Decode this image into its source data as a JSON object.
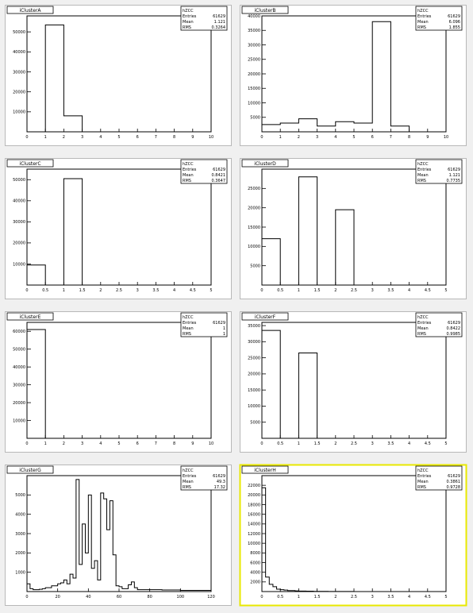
{
  "selected_pad": 7,
  "colors": {
    "pad_border": "#b8b8b8",
    "selected_border": "#e8e800",
    "background": "#f0f0f0"
  },
  "chart_data": [
    {
      "type": "bar",
      "title": "iClusterA",
      "stats": [
        [
          "hZCC",
          ""
        ],
        [
          "Entries",
          "61629"
        ],
        [
          "Mean",
          "1.121"
        ],
        [
          "RMS",
          "0.3264"
        ]
      ],
      "xlim": [
        0,
        10
      ],
      "ylim": [
        0,
        58000
      ],
      "xticks": [
        0,
        1,
        2,
        3,
        4,
        5,
        6,
        7,
        8,
        9,
        10
      ],
      "xticklabels": [
        "0",
        "1",
        "2",
        "3",
        "4",
        "5",
        "6",
        "7",
        "8",
        "9",
        "10"
      ],
      "yticks": [
        10000,
        20000,
        30000,
        40000,
        50000
      ],
      "yticklabels": [
        "10000",
        "20000",
        "30000",
        "40000",
        "50000"
      ],
      "bin_edges": [
        0,
        1,
        2,
        3,
        4,
        5,
        6,
        7,
        8,
        9,
        10
      ],
      "values": [
        0,
        53500,
        8000,
        0,
        0,
        0,
        0,
        0,
        0,
        0
      ]
    },
    {
      "type": "bar",
      "title": "iClusterB",
      "stats": [
        [
          "hZCC",
          ""
        ],
        [
          "Entries",
          "61629"
        ],
        [
          "Mean",
          "6.096"
        ],
        [
          "RMS",
          "1.855"
        ]
      ],
      "xlim": [
        0,
        10
      ],
      "ylim": [
        0,
        40000
      ],
      "xticks": [
        0,
        1,
        2,
        3,
        4,
        5,
        6,
        7,
        8,
        9,
        10
      ],
      "xticklabels": [
        "0",
        "1",
        "2",
        "3",
        "4",
        "5",
        "6",
        "7",
        "8",
        "9",
        "10"
      ],
      "yticks": [
        5000,
        10000,
        15000,
        20000,
        25000,
        30000,
        35000,
        40000
      ],
      "yticklabels": [
        "5000",
        "10000",
        "15000",
        "20000",
        "25000",
        "30000",
        "35000",
        "40000"
      ],
      "bin_edges": [
        0,
        1,
        2,
        3,
        4,
        5,
        6,
        7,
        8,
        9,
        10
      ],
      "values": [
        2500,
        3000,
        4500,
        2000,
        3500,
        3000,
        38000,
        2000,
        0,
        0
      ]
    },
    {
      "type": "bar",
      "title": "iClusterC",
      "stats": [
        [
          "hZCC",
          ""
        ],
        [
          "Entries",
          "61629"
        ],
        [
          "Mean",
          "0.8421"
        ],
        [
          "RMS",
          "0.3647"
        ]
      ],
      "xlim": [
        0,
        5
      ],
      "ylim": [
        0,
        55000
      ],
      "xticks": [
        0,
        0.5,
        1,
        1.5,
        2,
        2.5,
        3,
        3.5,
        4,
        4.5,
        5
      ],
      "xticklabels": [
        "0",
        "0.5",
        "1",
        "1.5",
        "2",
        "2.5",
        "3",
        "3.5",
        "4",
        "4.5",
        "5"
      ],
      "yticks": [
        10000,
        20000,
        30000,
        40000,
        50000
      ],
      "yticklabels": [
        "10000",
        "20000",
        "30000",
        "40000",
        "50000"
      ],
      "bin_edges": [
        0,
        0.5,
        1,
        1.5,
        2,
        2.5,
        3,
        3.5,
        4,
        4.5,
        5
      ],
      "values": [
        9500,
        0,
        50500,
        0,
        0,
        0,
        0,
        0,
        0,
        0
      ]
    },
    {
      "type": "bar",
      "title": "iClusterD",
      "stats": [
        [
          "hZCC",
          ""
        ],
        [
          "Entries",
          "61629"
        ],
        [
          "Mean",
          "1.121"
        ],
        [
          "RMS",
          "0.7735"
        ]
      ],
      "xlim": [
        0,
        5
      ],
      "ylim": [
        0,
        30000
      ],
      "xticks": [
        0,
        0.5,
        1,
        1.5,
        2,
        2.5,
        3,
        3.5,
        4,
        4.5,
        5
      ],
      "xticklabels": [
        "0",
        "0.5",
        "1",
        "1.5",
        "2",
        "2.5",
        "3",
        "3.5",
        "4",
        "4.5",
        "5"
      ],
      "yticks": [
        5000,
        10000,
        15000,
        20000,
        25000
      ],
      "yticklabels": [
        "5000",
        "10000",
        "15000",
        "20000",
        "25000"
      ],
      "bin_edges": [
        0,
        0.5,
        1,
        1.5,
        2,
        2.5,
        3,
        3.5,
        4,
        4.5,
        5
      ],
      "values": [
        12000,
        0,
        28000,
        0,
        19500,
        0,
        0,
        0,
        0,
        0
      ]
    },
    {
      "type": "bar",
      "title": "iClusterE",
      "stats": [
        [
          "hZCC",
          ""
        ],
        [
          "Entries",
          "61629"
        ],
        [
          "Mean",
          "1"
        ],
        [
          "RMS",
          "1"
        ]
      ],
      "xlim": [
        0,
        10
      ],
      "ylim": [
        0,
        65000
      ],
      "xticks": [
        0,
        1,
        2,
        3,
        4,
        5,
        6,
        7,
        8,
        9,
        10
      ],
      "xticklabels": [
        "0",
        "1",
        "2",
        "3",
        "4",
        "5",
        "6",
        "7",
        "8",
        "9",
        "10"
      ],
      "yticks": [
        10000,
        20000,
        30000,
        40000,
        50000,
        60000
      ],
      "yticklabels": [
        "10000",
        "20000",
        "30000",
        "40000",
        "50000",
        "60000"
      ],
      "bin_edges": [
        0,
        1,
        2,
        3,
        4,
        5,
        6,
        7,
        8,
        9,
        10
      ],
      "values": [
        61000,
        0,
        0,
        0,
        0,
        0,
        0,
        0,
        0,
        0
      ]
    },
    {
      "type": "bar",
      "title": "iClusterF",
      "stats": [
        [
          "hZCC",
          ""
        ],
        [
          "Entries",
          "61629"
        ],
        [
          "Mean",
          "0.8422"
        ],
        [
          "RMS",
          "0.9985"
        ]
      ],
      "xlim": [
        0,
        5
      ],
      "ylim": [
        0,
        36000
      ],
      "xticks": [
        0,
        0.5,
        1,
        1.5,
        2,
        2.5,
        3,
        3.5,
        4,
        4.5,
        5
      ],
      "xticklabels": [
        "0",
        "0.5",
        "1",
        "1.5",
        "2",
        "2.5",
        "3",
        "3.5",
        "4",
        "4.5",
        "5"
      ],
      "yticks": [
        5000,
        10000,
        15000,
        20000,
        25000,
        30000,
        35000
      ],
      "yticklabels": [
        "5000",
        "10000",
        "15000",
        "20000",
        "25000",
        "30000",
        "35000"
      ],
      "bin_edges": [
        0,
        0.5,
        1,
        1.5,
        2,
        2.5,
        3,
        3.5,
        4,
        4.5,
        5
      ],
      "values": [
        33500,
        0,
        26500,
        0,
        0,
        0,
        0,
        0,
        0,
        0
      ]
    },
    {
      "type": "bar",
      "title": "iClusterG",
      "stats": [
        [
          "hZCC",
          ""
        ],
        [
          "Entries",
          "61629"
        ],
        [
          "Mean",
          "49.3"
        ],
        [
          "RMS",
          "17.32"
        ]
      ],
      "xlim": [
        0,
        120
      ],
      "ylim": [
        0,
        6000
      ],
      "xticks": [
        0,
        20,
        40,
        60,
        80,
        100,
        120
      ],
      "xticklabels": [
        "0",
        "20",
        "40",
        "60",
        "80",
        "100",
        "120"
      ],
      "yticks": [
        1000,
        2000,
        3000,
        4000,
        5000
      ],
      "yticklabels": [
        "1000",
        "2000",
        "3000",
        "4000",
        "5000"
      ],
      "bin_edges": [
        0,
        2,
        4,
        6,
        8,
        10,
        12,
        14,
        16,
        18,
        20,
        22,
        24,
        26,
        28,
        30,
        32,
        34,
        36,
        38,
        40,
        42,
        44,
        46,
        48,
        50,
        52,
        54,
        56,
        58,
        60,
        62,
        64,
        66,
        68,
        70,
        72,
        74,
        76,
        78,
        80,
        82,
        84,
        86,
        88,
        90,
        92,
        94,
        96,
        98,
        100,
        102,
        104,
        106,
        108,
        110,
        112,
        114,
        116,
        118,
        120
      ],
      "values": [
        400,
        150,
        100,
        100,
        120,
        150,
        200,
        200,
        300,
        300,
        400,
        450,
        600,
        400,
        900,
        700,
        5800,
        1400,
        3500,
        2000,
        5000,
        1200,
        1600,
        600,
        5100,
        4800,
        3200,
        4700,
        1900,
        300,
        250,
        150,
        150,
        350,
        500,
        200,
        100,
        100,
        100,
        100,
        100,
        100,
        100,
        100,
        80,
        80,
        80,
        80,
        80,
        80,
        60,
        60,
        60,
        60,
        60,
        60,
        60,
        60,
        60,
        60
      ]
    },
    {
      "type": "bar",
      "title": "iClusterH",
      "stats": [
        [
          "hZCC",
          ""
        ],
        [
          "Entries",
          "61629"
        ],
        [
          "Mean",
          "0.3861"
        ],
        [
          "RMS",
          "0.9728"
        ]
      ],
      "xlim": [
        0,
        5
      ],
      "ylim": [
        0,
        24000
      ],
      "xticks": [
        0,
        0.5,
        1,
        1.5,
        2,
        2.5,
        3,
        3.5,
        4,
        4.5,
        5
      ],
      "xticklabels": [
        "0",
        "0.5",
        "1",
        "1.5",
        "2",
        "2.5",
        "3",
        "3.5",
        "4",
        "4.5",
        "5"
      ],
      "yticks": [
        2000,
        4000,
        6000,
        8000,
        10000,
        12000,
        14000,
        16000,
        18000,
        20000,
        22000
      ],
      "yticklabels": [
        "2000",
        "4000",
        "6000",
        "8000",
        "10000",
        "12000",
        "14000",
        "16000",
        "18000",
        "20000",
        "22000"
      ],
      "bin_edges": [
        0,
        0.1,
        0.2,
        0.3,
        0.4,
        0.5,
        0.6,
        0.7,
        0.8,
        0.9,
        1.0,
        1.1,
        1.2,
        1.3,
        1.4,
        1.5,
        1.6,
        1.7,
        1.8,
        1.9,
        2.0,
        2.1,
        2.2,
        2.3,
        2.4,
        2.5,
        2.6,
        2.7,
        2.8,
        2.9,
        3.0,
        3.1,
        3.2,
        3.3,
        3.4,
        3.5,
        3.6,
        3.7,
        3.8,
        3.9,
        4.0,
        4.1,
        4.2,
        4.3,
        4.4,
        4.5,
        4.6,
        4.7,
        4.8,
        4.9,
        5.0
      ],
      "values": [
        21500,
        3000,
        1500,
        1000,
        500,
        400,
        300,
        200,
        200,
        150,
        100,
        100,
        80,
        80,
        50,
        50,
        40,
        40,
        30,
        30,
        20,
        20,
        20,
        20,
        20,
        10,
        10,
        10,
        10,
        10,
        10,
        10,
        10,
        10,
        10,
        10,
        10,
        10,
        10,
        10,
        10,
        10,
        10,
        10,
        10,
        10,
        10,
        10,
        10,
        10
      ]
    }
  ]
}
